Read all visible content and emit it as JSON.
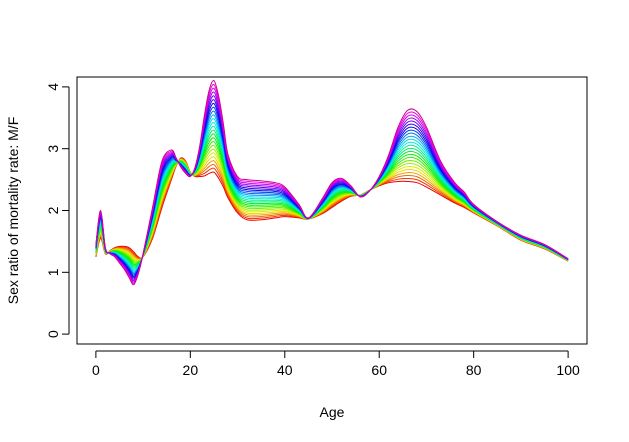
{
  "chart_data": {
    "type": "line",
    "xlabel": "Age",
    "ylabel": "Sex ratio of mortality rate: M/F",
    "xlim": [
      -4,
      104
    ],
    "ylim": [
      -0.16,
      4.16
    ],
    "x_ticks": [
      0,
      20,
      40,
      60,
      80,
      100
    ],
    "y_ticks": [
      0,
      1,
      2,
      3,
      4
    ],
    "x_tick_labels": [
      "0",
      "20",
      "40",
      "60",
      "80",
      "100"
    ],
    "y_tick_labels": [
      "0",
      "1",
      "2",
      "3",
      "4"
    ],
    "color_scale": "rainbow (red → orange → yellow → green → cyan → blue → magenta)",
    "series_count": 25,
    "x": [
      0,
      1,
      2,
      3,
      4,
      5,
      6,
      7,
      8,
      9,
      10,
      12,
      14,
      16,
      17,
      18,
      19,
      20,
      21,
      22,
      23,
      24,
      25,
      26,
      27,
      28,
      30,
      32,
      35,
      38,
      40,
      43,
      45,
      48,
      50,
      52,
      54,
      56,
      58,
      60,
      62,
      64,
      66,
      68,
      70,
      73,
      76,
      78,
      80,
      85,
      90,
      95,
      100
    ],
    "series_low": {
      "name": "",
      "color": "#FF0000",
      "values": [
        1.25,
        1.55,
        1.3,
        1.35,
        1.4,
        1.42,
        1.42,
        1.4,
        1.33,
        1.25,
        1.25,
        1.55,
        2.05,
        2.5,
        2.72,
        2.85,
        2.8,
        2.62,
        2.55,
        2.55,
        2.56,
        2.6,
        2.62,
        2.52,
        2.38,
        2.2,
        1.96,
        1.85,
        1.85,
        1.88,
        1.9,
        1.88,
        1.86,
        1.95,
        2.05,
        2.15,
        2.23,
        2.25,
        2.33,
        2.4,
        2.45,
        2.47,
        2.47,
        2.45,
        2.38,
        2.25,
        2.12,
        2.05,
        1.96,
        1.75,
        1.52,
        1.38,
        1.18
      ]
    },
    "series_high": {
      "name": "",
      "color": "#CC0099",
      "values": [
        1.45,
        2.0,
        1.4,
        1.3,
        1.25,
        1.15,
        1.05,
        0.92,
        0.8,
        0.98,
        1.3,
        2.05,
        2.8,
        2.98,
        2.85,
        2.7,
        2.6,
        2.55,
        2.7,
        3.05,
        3.55,
        3.95,
        4.1,
        3.85,
        3.4,
        2.9,
        2.55,
        2.5,
        2.48,
        2.45,
        2.38,
        2.1,
        1.88,
        2.2,
        2.45,
        2.52,
        2.4,
        2.22,
        2.32,
        2.55,
        2.9,
        3.35,
        3.62,
        3.6,
        3.35,
        2.8,
        2.45,
        2.3,
        2.1,
        1.82,
        1.6,
        1.45,
        1.22
      ]
    }
  }
}
